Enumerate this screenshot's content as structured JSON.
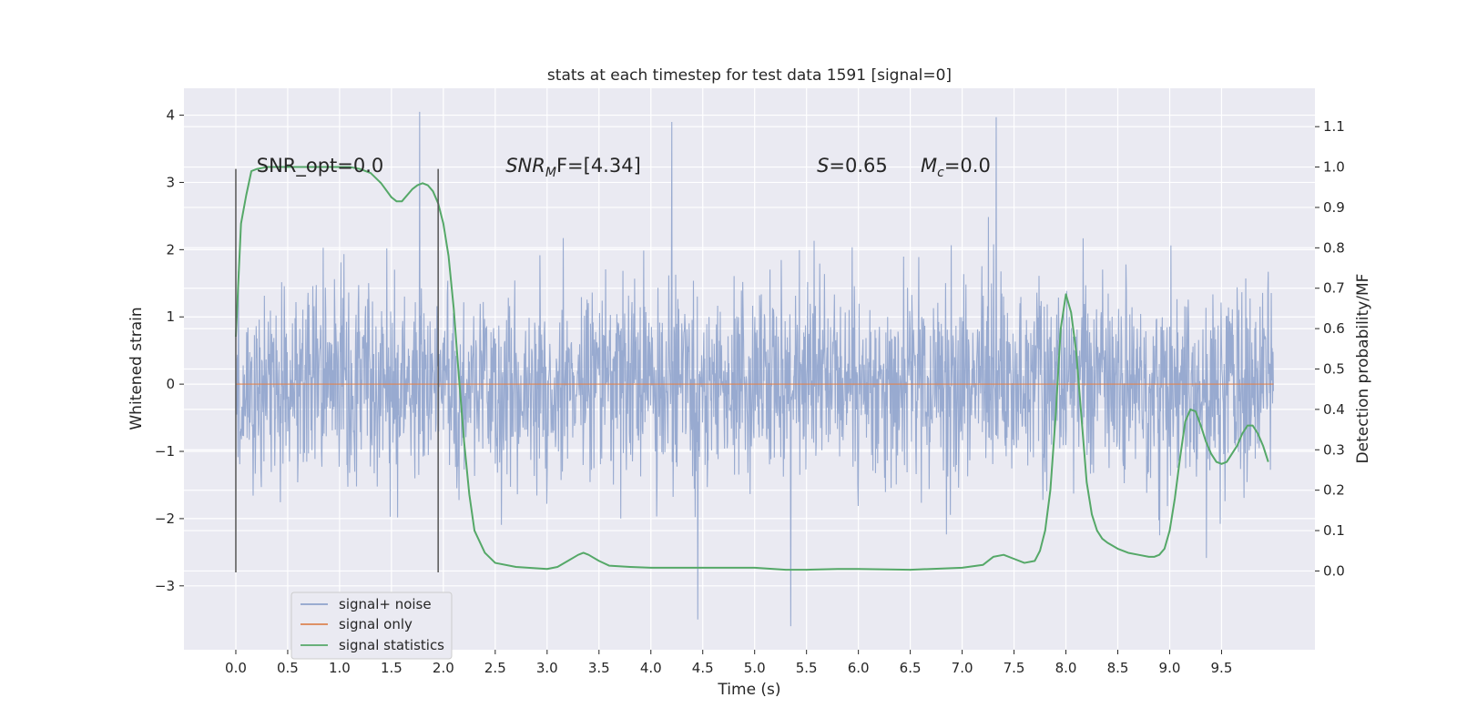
{
  "chart_data": {
    "type": "line",
    "title": "stats at each timestep for test data 1591 [signal=0]",
    "xlabel": "Time (s)",
    "ylabel_left": "Whitened strain",
    "ylabel_right": "Detection probability/MF",
    "xlim": [
      -0.5,
      10.4
    ],
    "ylim_left": [
      -3.95,
      4.4
    ],
    "ylim_right": [
      -0.195,
      1.195
    ],
    "x_ticks": [
      0.0,
      0.5,
      1.0,
      1.5,
      2.0,
      2.5,
      3.0,
      3.5,
      4.0,
      4.5,
      5.0,
      5.5,
      6.0,
      6.5,
      7.0,
      7.5,
      8.0,
      8.5,
      9.0,
      9.5
    ],
    "x_tick_labels": [
      "0.0",
      "0.5",
      "1.0",
      "1.5",
      "2.0",
      "2.5",
      "3.0",
      "3.5",
      "4.0",
      "4.5",
      "5.0",
      "5.5",
      "6.0",
      "6.5",
      "7.0",
      "7.5",
      "8.0",
      "8.5",
      "9.0",
      "9.5"
    ],
    "y_left_ticks": [
      -3,
      -2,
      -1,
      0,
      1,
      2,
      3,
      4
    ],
    "y_left_tick_labels": [
      "−3",
      "−2",
      "−1",
      "0",
      "1",
      "2",
      "3",
      "4"
    ],
    "y_right_ticks": [
      0.0,
      0.1,
      0.2,
      0.3,
      0.4,
      0.5,
      0.6,
      0.7,
      0.8,
      0.9,
      1.0,
      1.1
    ],
    "y_right_tick_labels": [
      "0.0",
      "0.1",
      "0.2",
      "0.3",
      "0.4",
      "0.5",
      "0.6",
      "0.7",
      "0.8",
      "0.9",
      "1.0",
      "1.1"
    ],
    "grid": true,
    "legend_position": "bottom-left",
    "series": [
      {
        "name": "signal+ noise",
        "axis": "left",
        "color": "#8fa3cc",
        "x_range": [
          0.0,
          10.0
        ],
        "y_range_approx": [
          -3.6,
          4.05
        ],
        "peaks": [
          [
            1.77,
            4.05
          ],
          [
            7.33,
            3.97
          ],
          [
            4.2,
            3.9
          ],
          [
            5.35,
            -3.6
          ],
          [
            4.45,
            -3.5
          ]
        ]
      },
      {
        "name": "signal only",
        "axis": "left",
        "color": "#dd8452",
        "x": [
          0.0,
          10.0
        ],
        "y": [
          0.0,
          0.0
        ]
      },
      {
        "name": "signal statistics",
        "axis": "right",
        "color": "#55a868",
        "x": [
          0.0,
          0.05,
          0.1,
          0.15,
          0.2,
          0.3,
          0.5,
          0.8,
          1.1,
          1.2,
          1.3,
          1.4,
          1.5,
          1.55,
          1.6,
          1.7,
          1.75,
          1.8,
          1.85,
          1.9,
          1.95,
          2.0,
          2.05,
          2.1,
          2.15,
          2.2,
          2.25,
          2.3,
          2.4,
          2.5,
          2.7,
          3.0,
          3.1,
          3.2,
          3.3,
          3.35,
          3.4,
          3.5,
          3.6,
          3.8,
          4.0,
          4.5,
          5.0,
          5.3,
          5.5,
          5.8,
          6.0,
          6.5,
          7.0,
          7.2,
          7.3,
          7.4,
          7.5,
          7.6,
          7.7,
          7.75,
          7.8,
          7.85,
          7.9,
          7.95,
          8.0,
          8.05,
          8.1,
          8.15,
          8.2,
          8.25,
          8.3,
          8.35,
          8.4,
          8.5,
          8.6,
          8.7,
          8.8,
          8.85,
          8.9,
          8.95,
          9.0,
          9.05,
          9.1,
          9.15,
          9.2,
          9.25,
          9.3,
          9.35,
          9.4,
          9.45,
          9.5,
          9.55,
          9.6,
          9.65,
          9.7,
          9.75,
          9.8,
          9.85,
          9.9,
          9.95
        ],
        "y": [
          0.58,
          0.86,
          0.93,
          0.99,
          0.995,
          1.0,
          1.0,
          1.0,
          1.0,
          0.995,
          0.985,
          0.96,
          0.925,
          0.915,
          0.915,
          0.945,
          0.955,
          0.96,
          0.955,
          0.94,
          0.91,
          0.86,
          0.78,
          0.65,
          0.48,
          0.32,
          0.19,
          0.1,
          0.045,
          0.02,
          0.01,
          0.005,
          0.01,
          0.025,
          0.04,
          0.045,
          0.04,
          0.025,
          0.013,
          0.01,
          0.008,
          0.008,
          0.008,
          0.003,
          0.003,
          0.005,
          0.005,
          0.003,
          0.008,
          0.015,
          0.035,
          0.04,
          0.03,
          0.02,
          0.025,
          0.05,
          0.1,
          0.2,
          0.38,
          0.6,
          0.685,
          0.64,
          0.54,
          0.38,
          0.22,
          0.14,
          0.1,
          0.08,
          0.07,
          0.055,
          0.045,
          0.04,
          0.035,
          0.035,
          0.04,
          0.055,
          0.1,
          0.18,
          0.28,
          0.37,
          0.4,
          0.395,
          0.36,
          0.32,
          0.29,
          0.27,
          0.265,
          0.27,
          0.29,
          0.31,
          0.34,
          0.36,
          0.36,
          0.34,
          0.31,
          0.27
        ]
      }
    ],
    "vertical_markers": [
      {
        "x": 0.0,
        "y_from": -2.8,
        "y_to": 3.2
      },
      {
        "x": 1.95,
        "y_from": -2.8,
        "y_to": 3.2
      }
    ],
    "annotations": [
      {
        "id": "snr_opt",
        "text": "SNR_opt=0.0",
        "x": 0.2,
        "y": 3.25
      },
      {
        "id": "snr_mf",
        "text_italic": "SNR",
        "sub": "M",
        "text_rest": "F=[4.34]",
        "x": 2.6,
        "y": 3.25
      },
      {
        "id": "s_value",
        "text_italic": "S",
        "text_rest": "=0.65",
        "x": 5.6,
        "y": 3.25
      },
      {
        "id": "mc_value",
        "text_italic": "M",
        "sub": "c",
        "text_rest": "=0.0",
        "x": 6.6,
        "y": 3.25
      }
    ]
  },
  "colors": {
    "plot_background": "#eaeaf2",
    "grid": "#ffffff",
    "text": "#262626",
    "marker_lines": "#555555"
  }
}
